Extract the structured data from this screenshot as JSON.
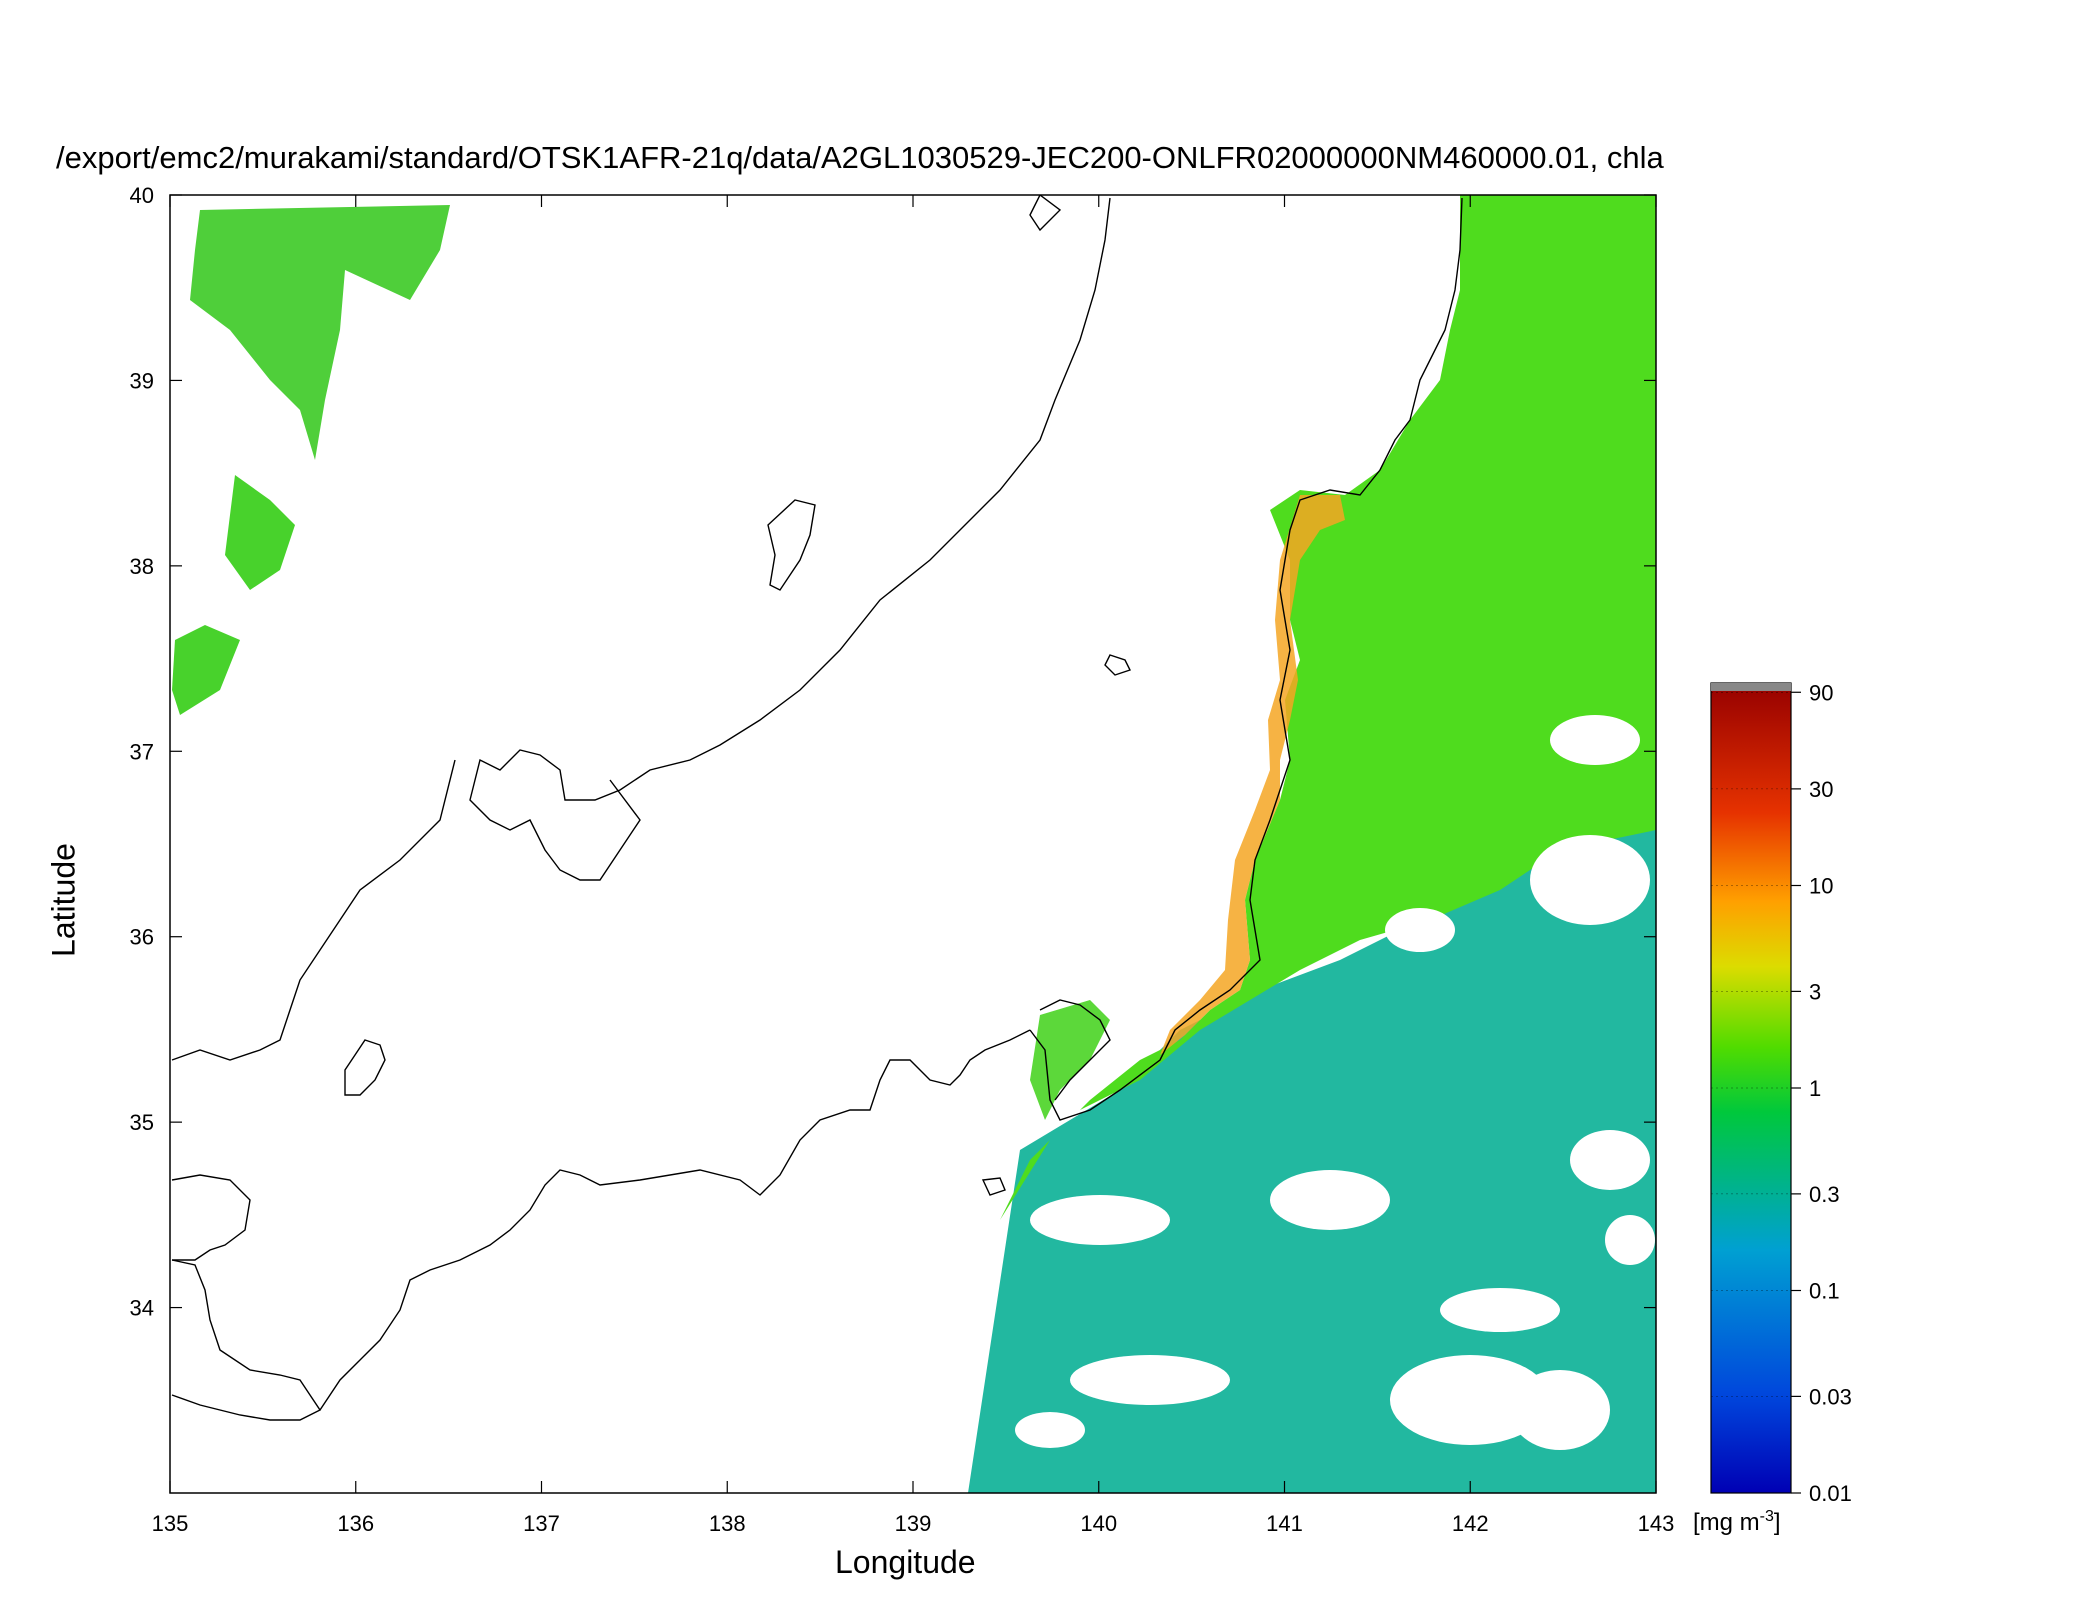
{
  "title": "/export/emc2/murakami/standard/OTSK1AFR-21q/data/A2GL1030529-JEC200-ONLFR02000000NM460000.01, chla",
  "xlabel": "Longitude",
  "ylabel": "Latitude",
  "x_ticks": [
    "135",
    "136",
    "137",
    "138",
    "139",
    "140",
    "141",
    "142",
    "143"
  ],
  "y_ticks": [
    "40",
    "39",
    "38",
    "37",
    "36",
    "35",
    "34"
  ],
  "colorbar": {
    "ticks": [
      "90",
      "30",
      "10",
      "3",
      "1",
      "0.3",
      "0.1",
      "0.03",
      "0.01"
    ],
    "unit_main": "[mg m",
    "unit_sup": "-3",
    "unit_close": "]",
    "scale": "log",
    "range": [
      0.01,
      100
    ],
    "colors": [
      "#0000b4",
      "#0046dc",
      "#00a0d2",
      "#00c83c",
      "#50dc00",
      "#dcdc00",
      "#ffa000",
      "#e63200",
      "#960000"
    ]
  },
  "map": {
    "lon_range": [
      135,
      143
    ],
    "lat_range": [
      33.0,
      40.0
    ],
    "colors": {
      "land": "#ffffff",
      "coast": "#000000",
      "chla_coastal": "#4fdc1e",
      "chla_offshore": "#22b8a0",
      "chla_high": "#f5a623",
      "cloud": "#ffffff"
    }
  }
}
